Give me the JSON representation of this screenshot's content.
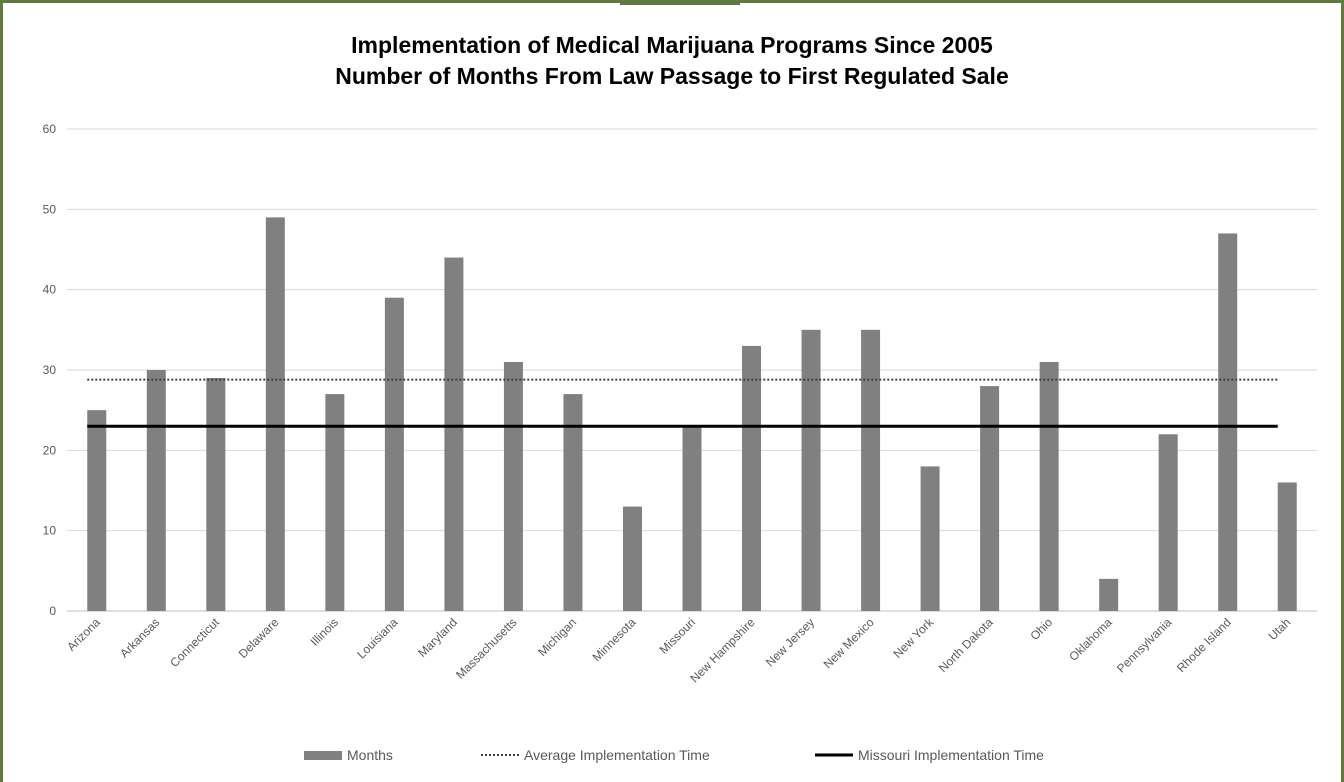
{
  "chart_data": {
    "type": "bar",
    "title": "Implementation of Medical Marijuana Programs Since 2005",
    "subtitle": "Number of Months From Law Passage to First Regulated Sale",
    "xlabel": "",
    "ylabel": "",
    "ylim": [
      0,
      60
    ],
    "yticks": [
      0,
      10,
      20,
      30,
      40,
      50,
      60
    ],
    "grid": true,
    "legend_position": "bottom",
    "categories": [
      "Arizona",
      "Arkansas",
      "Connecticut",
      "Delaware",
      "Illinois",
      "Louisiana",
      "Maryland",
      "Massachusetts",
      "Michigan",
      "Minnesota",
      "Missouri",
      "New Hampshire",
      "New Jersey",
      "New Mexico",
      "New York",
      "North Dakota",
      "Ohio",
      "Oklahoma",
      "Pennsylvania",
      "Rhode Island",
      "Utah"
    ],
    "series": [
      {
        "name": "Months",
        "type": "bar",
        "color": "#808080",
        "values": [
          25,
          30,
          29,
          49,
          27,
          39,
          44,
          31,
          27,
          13,
          23,
          33,
          35,
          35,
          18,
          28,
          31,
          4,
          22,
          47,
          16
        ]
      }
    ],
    "reference_lines": [
      {
        "name": "Average Implementation Time",
        "value": 28.8,
        "style": "dotted",
        "color": "#404040"
      },
      {
        "name": "Missouri Implementation Time",
        "value": 23,
        "style": "solid",
        "color": "#000000"
      }
    ]
  }
}
